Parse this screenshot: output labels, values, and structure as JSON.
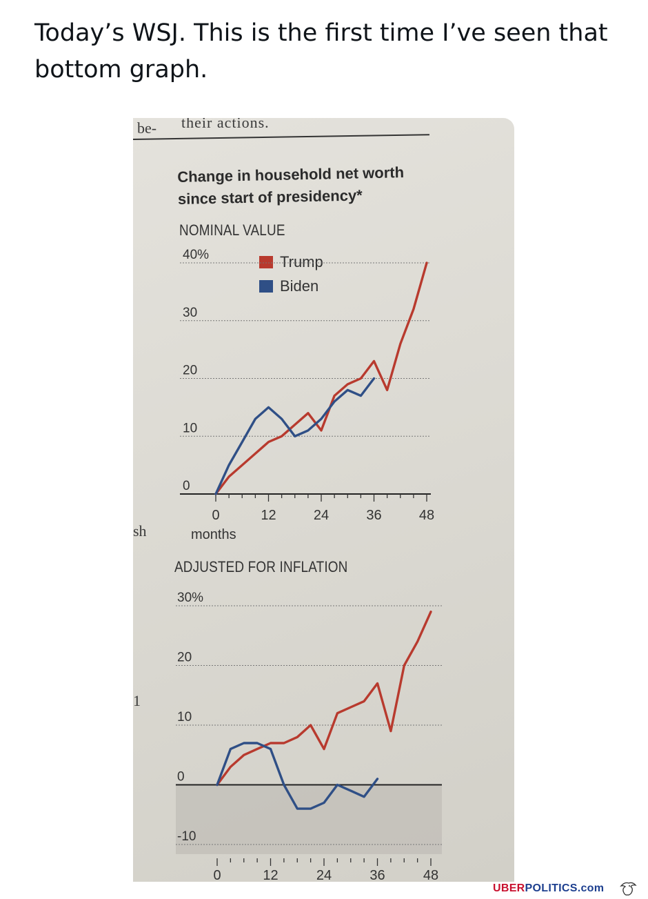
{
  "tweet": {
    "text": "Today’s WSJ. This is the first time I’ve seen that bottom graph."
  },
  "clipping": {
    "top_left_fragment": "be-",
    "top_text": "their actions.",
    "left_margin_fragment": "sh",
    "left_margin_fragment_2": "1"
  },
  "chart": {
    "title_line1": "Change in household net worth",
    "title_line2": "since start of presidency*",
    "legend": [
      {
        "name": "Trump",
        "color": "#b83a2e"
      },
      {
        "name": "Biden",
        "color": "#2f4f86"
      }
    ],
    "x_unit": "months"
  },
  "chart_data": [
    {
      "type": "line",
      "title": "NOMINAL VALUE",
      "xlabel": "months",
      "ylabel": "",
      "xlim": [
        0,
        48
      ],
      "ylim": [
        0,
        40
      ],
      "x_ticks": [
        "0",
        "12",
        "24",
        "36",
        "48"
      ],
      "y_ticks": [
        "0",
        "10",
        "20",
        "30",
        "40%"
      ],
      "grid": true,
      "legend_position": "top-center",
      "series": [
        {
          "name": "Trump",
          "color": "#b83a2e",
          "x": [
            0,
            3,
            6,
            9,
            12,
            15,
            18,
            21,
            24,
            27,
            30,
            33,
            36,
            39,
            42,
            45,
            48
          ],
          "y": [
            0,
            3,
            5,
            7,
            9,
            10,
            12,
            14,
            11,
            17,
            19,
            20,
            23,
            18,
            26,
            32,
            40
          ]
        },
        {
          "name": "Biden",
          "color": "#2f4f86",
          "x": [
            0,
            3,
            6,
            9,
            12,
            15,
            18,
            21,
            24,
            27,
            30,
            33,
            36
          ],
          "y": [
            0,
            5,
            9,
            13,
            15,
            13,
            10,
            11,
            13,
            16,
            18,
            17,
            20
          ]
        }
      ]
    },
    {
      "type": "line",
      "title": "ADJUSTED FOR INFLATION",
      "xlabel": "",
      "ylabel": "",
      "xlim": [
        0,
        48
      ],
      "ylim": [
        -10,
        30
      ],
      "x_ticks": [
        "0",
        "12",
        "24",
        "36",
        "48"
      ],
      "y_ticks": [
        "-10",
        "0",
        "10",
        "20",
        "30%"
      ],
      "grid": true,
      "series": [
        {
          "name": "Trump",
          "color": "#b83a2e",
          "x": [
            0,
            3,
            6,
            9,
            12,
            15,
            18,
            21,
            24,
            27,
            30,
            33,
            36,
            39,
            42,
            45,
            48
          ],
          "y": [
            0,
            3,
            5,
            6,
            7,
            7,
            8,
            10,
            6,
            12,
            13,
            14,
            17,
            9,
            20,
            24,
            29
          ]
        },
        {
          "name": "Biden",
          "color": "#2f4f86",
          "x": [
            0,
            3,
            6,
            9,
            12,
            15,
            18,
            21,
            24,
            27,
            30,
            33,
            36
          ],
          "y": [
            0,
            6,
            7,
            7,
            6,
            0,
            -4,
            -4,
            -3,
            0,
            -1,
            -2,
            1
          ]
        }
      ]
    }
  ],
  "watermark": {
    "part1": "UBER",
    "part2": "POLITICS.com"
  }
}
